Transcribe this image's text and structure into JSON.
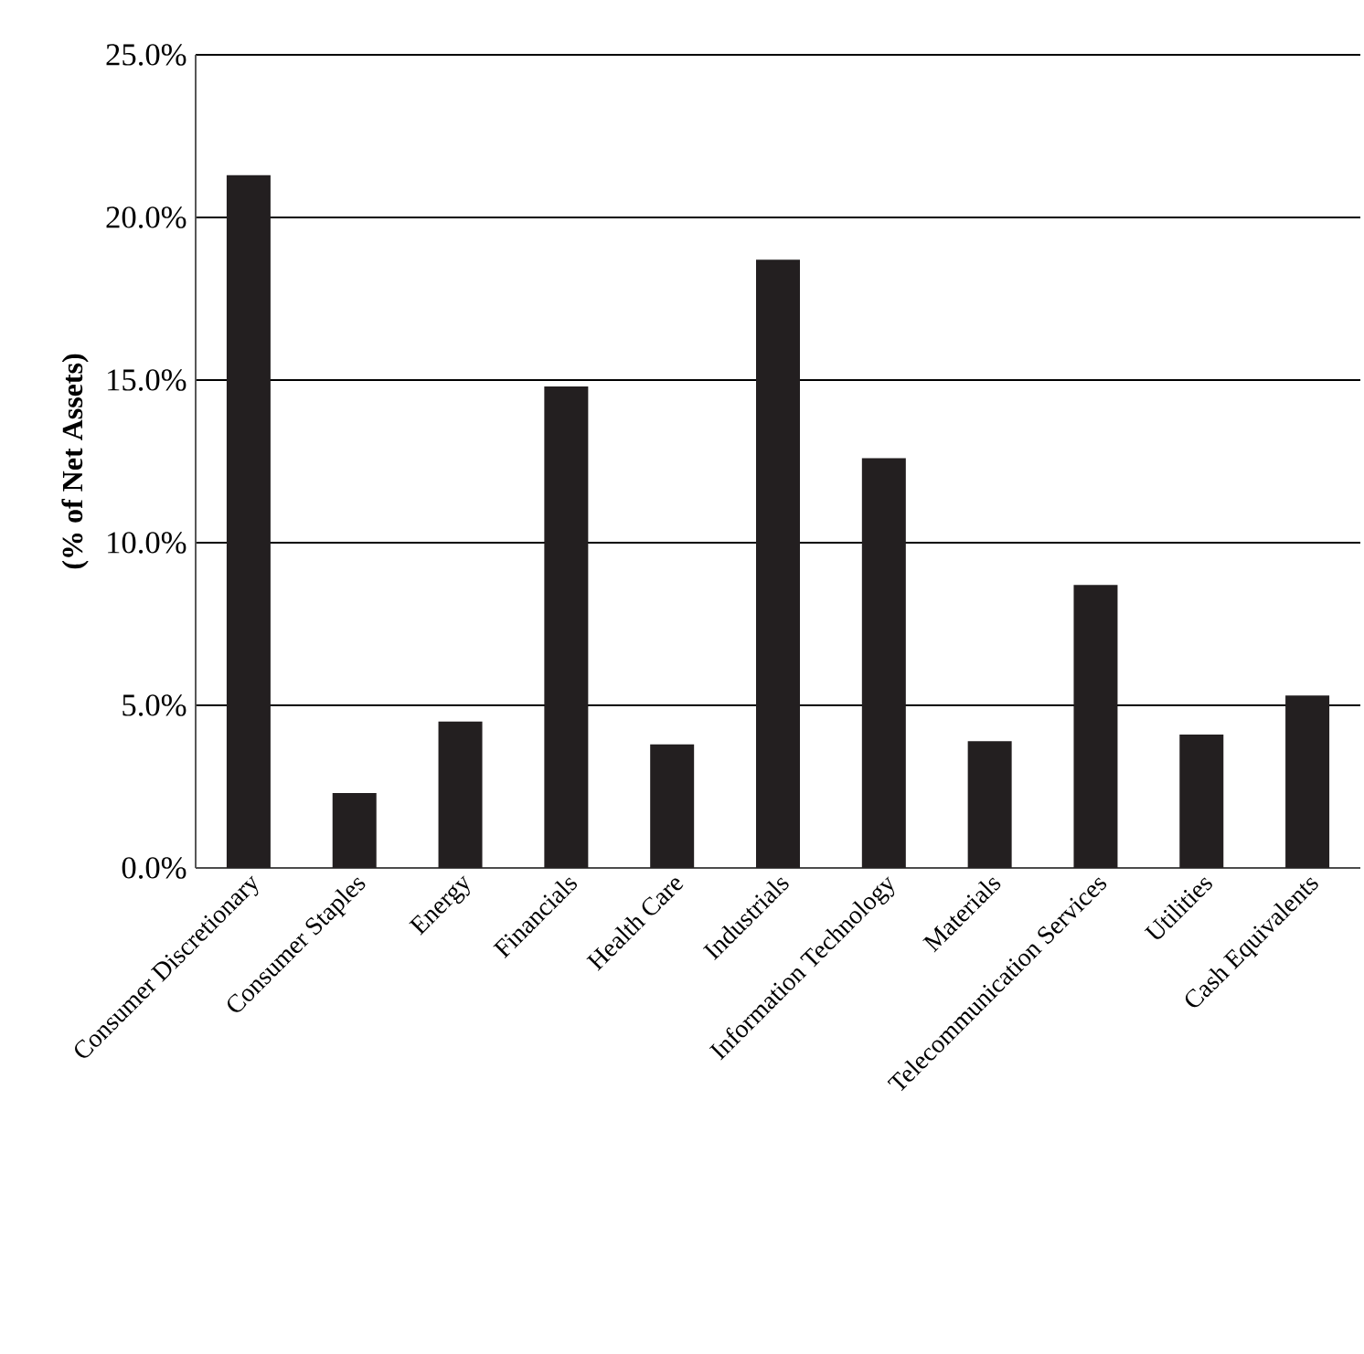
{
  "chart_data": {
    "type": "bar",
    "ylabel": "(% of Net Assets)",
    "categories": [
      "Consumer Discretionary",
      "Consumer Staples",
      "Energy",
      "Financials",
      "Health Care",
      "Industrials",
      "Information Technology",
      "Materials",
      "Telecommunication Services",
      "Utilities",
      "Cash Equivalents"
    ],
    "values": [
      21.3,
      2.3,
      4.5,
      14.8,
      3.8,
      18.7,
      12.6,
      3.9,
      8.7,
      4.1,
      5.3
    ],
    "color": "#231f20",
    "ylim": [
      0,
      25
    ],
    "yticks": [
      {
        "value": 0,
        "label": "0.0%"
      },
      {
        "value": 5,
        "label": "5.0%"
      },
      {
        "value": 10,
        "label": "10.0%"
      },
      {
        "value": 15,
        "label": "15.0%"
      },
      {
        "value": 20,
        "label": "20.0%"
      },
      {
        "value": 25,
        "label": "25.0%"
      }
    ],
    "grid": "y"
  }
}
